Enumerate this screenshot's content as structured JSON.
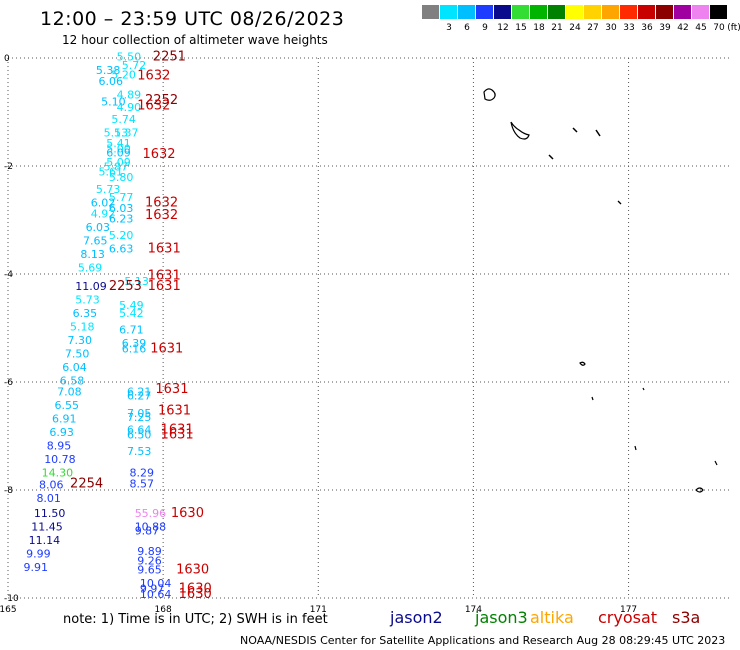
{
  "title": "12:00 – 23:59 UTC 08/26/2023",
  "subtitle": "12 hour collection of altimeter wave heights",
  "legend": {
    "unit": "(ft)",
    "items": [
      {
        "label": "",
        "color": "#808080"
      },
      {
        "label": "3",
        "color": "#00e5ff"
      },
      {
        "label": "6",
        "color": "#00bfff"
      },
      {
        "label": "9",
        "color": "#1e3cff"
      },
      {
        "label": "12",
        "color": "#0a0a8c"
      },
      {
        "label": "15",
        "color": "#33dd33"
      },
      {
        "label": "18",
        "color": "#00b400"
      },
      {
        "label": "21",
        "color": "#008200"
      },
      {
        "label": "24",
        "color": "#ffff00"
      },
      {
        "label": "27",
        "color": "#ffd200"
      },
      {
        "label": "30",
        "color": "#ffa500"
      },
      {
        "label": "33",
        "color": "#ff2a00"
      },
      {
        "label": "36",
        "color": "#c80000"
      },
      {
        "label": "39",
        "color": "#8c0000"
      },
      {
        "label": "42",
        "color": "#a000a0"
      },
      {
        "label": "45",
        "color": "#ee82ee"
      },
      {
        "label": "70",
        "color": "#000000"
      }
    ]
  },
  "note": "note: 1) Time is in UTC; 2) SWH is in feet",
  "satellites": [
    {
      "name": "jason2",
      "color": "#0a0a8c"
    },
    {
      "name": "jason3",
      "color": "#008200"
    },
    {
      "name": "altika",
      "color": "#ffa500"
    },
    {
      "name": "cryosat",
      "color": "#c80000"
    },
    {
      "name": "s3a",
      "color": "#8c0000"
    }
  ],
  "footer": "NOAA/NESDIS Center for Satellite Applications and Research   Aug 28 08:29:45 UTC 2023",
  "chart_data": {
    "type": "scatter",
    "xlim": [
      165,
      179
    ],
    "ylim": [
      -10,
      0
    ],
    "x_ticks": [
      "165",
      "168",
      "171",
      "174",
      "177"
    ],
    "y_ticks": [
      "0",
      "-2",
      "-4",
      "-6",
      "-8",
      "-10"
    ],
    "grid": true,
    "wave_heights": [
      {
        "x": 167.1,
        "y": -0.05,
        "v": "5.50",
        "color": "#00e5ff"
      },
      {
        "x": 167.2,
        "y": -0.2,
        "v": "5.72",
        "color": "#00e5ff"
      },
      {
        "x": 166.7,
        "y": -0.3,
        "v": "5.38",
        "color": "#00bfff"
      },
      {
        "x": 167.0,
        "y": -0.38,
        "v": "5.20",
        "color": "#00e5ff"
      },
      {
        "x": 166.75,
        "y": -0.5,
        "v": "6.06",
        "color": "#00bfff"
      },
      {
        "x": 167.1,
        "y": -0.75,
        "v": "4.89",
        "color": "#00e5ff"
      },
      {
        "x": 166.8,
        "y": -0.88,
        "v": "5.10",
        "color": "#00bfff"
      },
      {
        "x": 167.1,
        "y": -0.98,
        "v": "4.90",
        "color": "#00e5ff"
      },
      {
        "x": 167.0,
        "y": -1.2,
        "v": "5.74",
        "color": "#00e5ff"
      },
      {
        "x": 166.85,
        "y": -1.45,
        "v": "5.13",
        "color": "#00e5ff"
      },
      {
        "x": 167.05,
        "y": -1.45,
        "v": "5.37",
        "color": "#00e5ff"
      },
      {
        "x": 166.9,
        "y": -1.65,
        "v": "5.41",
        "color": "#00e5ff"
      },
      {
        "x": 166.9,
        "y": -1.75,
        "v": "5.00",
        "color": "#00e5ff"
      },
      {
        "x": 166.9,
        "y": -1.82,
        "v": "6.09",
        "color": "#00bfff"
      },
      {
        "x": 166.9,
        "y": -2.0,
        "v": "5.09",
        "color": "#00e5ff"
      },
      {
        "x": 166.85,
        "y": -2.08,
        "v": "5.87",
        "color": "#00e5ff"
      },
      {
        "x": 166.75,
        "y": -2.18,
        "v": "5.61",
        "color": "#00e5ff"
      },
      {
        "x": 166.95,
        "y": -2.28,
        "v": "5.80",
        "color": "#00e5ff"
      },
      {
        "x": 166.7,
        "y": -2.5,
        "v": "5.73",
        "color": "#00e5ff"
      },
      {
        "x": 166.95,
        "y": -2.65,
        "v": "5.77",
        "color": "#00e5ff"
      },
      {
        "x": 166.6,
        "y": -2.75,
        "v": "6.02",
        "color": "#00bfff"
      },
      {
        "x": 166.95,
        "y": -2.85,
        "v": "6.03",
        "color": "#00bfff"
      },
      {
        "x": 166.6,
        "y": -2.95,
        "v": "4.92",
        "color": "#00e5ff"
      },
      {
        "x": 166.95,
        "y": -3.05,
        "v": "6.23",
        "color": "#00bfff"
      },
      {
        "x": 166.5,
        "y": -3.2,
        "v": "6.03",
        "color": "#00bfff"
      },
      {
        "x": 166.95,
        "y": -3.35,
        "v": "5.20",
        "color": "#00e5ff"
      },
      {
        "x": 166.45,
        "y": -3.45,
        "v": "7.65",
        "color": "#00bfff"
      },
      {
        "x": 166.95,
        "y": -3.6,
        "v": "6.63",
        "color": "#00bfff"
      },
      {
        "x": 166.4,
        "y": -3.7,
        "v": "8.13",
        "color": "#00bfff"
      },
      {
        "x": 166.35,
        "y": -3.95,
        "v": "5.69",
        "color": "#00e5ff"
      },
      {
        "x": 167.25,
        "y": -4.2,
        "v": "5.13",
        "color": "#00e5ff"
      },
      {
        "x": 166.3,
        "y": -4.3,
        "v": "11.09",
        "color": "#0a0a8c"
      },
      {
        "x": 166.3,
        "y": -4.55,
        "v": "5.73",
        "color": "#00e5ff"
      },
      {
        "x": 167.15,
        "y": -4.65,
        "v": "5.49",
        "color": "#00e5ff"
      },
      {
        "x": 167.15,
        "y": -4.8,
        "v": "5.42",
        "color": "#00e5ff"
      },
      {
        "x": 166.25,
        "y": -4.8,
        "v": "6.35",
        "color": "#00bfff"
      },
      {
        "x": 166.2,
        "y": -5.05,
        "v": "5.18",
        "color": "#00e5ff"
      },
      {
        "x": 167.15,
        "y": -5.1,
        "v": "6.71",
        "color": "#00bfff"
      },
      {
        "x": 166.15,
        "y": -5.3,
        "v": "7.30",
        "color": "#00bfff"
      },
      {
        "x": 167.2,
        "y": -5.35,
        "v": "6.39",
        "color": "#00bfff"
      },
      {
        "x": 167.2,
        "y": -5.45,
        "v": "6.16",
        "color": "#00bfff"
      },
      {
        "x": 166.1,
        "y": -5.55,
        "v": "7.50",
        "color": "#00bfff"
      },
      {
        "x": 166.05,
        "y": -5.8,
        "v": "6.04",
        "color": "#00bfff"
      },
      {
        "x": 166.0,
        "y": -6.05,
        "v": "6.58",
        "color": "#00bfff"
      },
      {
        "x": 165.95,
        "y": -6.25,
        "v": "7.08",
        "color": "#00bfff"
      },
      {
        "x": 167.3,
        "y": -6.25,
        "v": "6.21",
        "color": "#00bfff"
      },
      {
        "x": 167.3,
        "y": -6.32,
        "v": "6.27",
        "color": "#00bfff"
      },
      {
        "x": 165.9,
        "y": -6.5,
        "v": "6.55",
        "color": "#00bfff"
      },
      {
        "x": 167.3,
        "y": -6.65,
        "v": "7.05",
        "color": "#00bfff"
      },
      {
        "x": 167.3,
        "y": -6.72,
        "v": "7.25",
        "color": "#00bfff"
      },
      {
        "x": 165.85,
        "y": -6.75,
        "v": "6.91",
        "color": "#00bfff"
      },
      {
        "x": 167.3,
        "y": -6.95,
        "v": "6.64",
        "color": "#00bfff"
      },
      {
        "x": 165.8,
        "y": -7.0,
        "v": "6.93",
        "color": "#00bfff"
      },
      {
        "x": 167.3,
        "y": -7.05,
        "v": "6.50",
        "color": "#00bfff"
      },
      {
        "x": 165.75,
        "y": -7.25,
        "v": "8.95",
        "color": "#1e3cff"
      },
      {
        "x": 167.3,
        "y": -7.35,
        "v": "7.53",
        "color": "#00bfff"
      },
      {
        "x": 165.7,
        "y": -7.5,
        "v": "10.78",
        "color": "#1e3cff"
      },
      {
        "x": 165.65,
        "y": -7.75,
        "v": "14.30",
        "color": "#33dd33"
      },
      {
        "x": 167.35,
        "y": -7.75,
        "v": "8.29",
        "color": "#1e3cff"
      },
      {
        "x": 165.6,
        "y": -7.97,
        "v": "8.06",
        "color": "#1e3cff"
      },
      {
        "x": 167.35,
        "y": -7.95,
        "v": "8.57",
        "color": "#1e3cff"
      },
      {
        "x": 165.55,
        "y": -8.22,
        "v": "8.01",
        "color": "#1e3cff"
      },
      {
        "x": 167.45,
        "y": -8.5,
        "v": "55.96",
        "color": "#ee82ee"
      },
      {
        "x": 165.5,
        "y": -8.5,
        "v": "11.50",
        "color": "#0a0a8c"
      },
      {
        "x": 165.45,
        "y": -8.75,
        "v": "11.45",
        "color": "#0a0a8c"
      },
      {
        "x": 167.45,
        "y": -8.75,
        "v": "10.88",
        "color": "#1e3cff"
      },
      {
        "x": 167.45,
        "y": -8.82,
        "v": "9.87",
        "color": "#1e3cff"
      },
      {
        "x": 165.4,
        "y": -9.0,
        "v": "11.14",
        "color": "#0a0a8c"
      },
      {
        "x": 165.35,
        "y": -9.25,
        "v": "9.99",
        "color": "#1e3cff"
      },
      {
        "x": 167.5,
        "y": -9.2,
        "v": "9.89",
        "color": "#1e3cff"
      },
      {
        "x": 167.5,
        "y": -9.38,
        "v": "9.26",
        "color": "#1e3cff"
      },
      {
        "x": 165.3,
        "y": -9.5,
        "v": "9.91",
        "color": "#1e3cff"
      },
      {
        "x": 167.5,
        "y": -9.55,
        "v": "9.65",
        "color": "#1e3cff"
      },
      {
        "x": 167.55,
        "y": -9.8,
        "v": "10.04",
        "color": "#1e3cff"
      },
      {
        "x": 167.55,
        "y": -9.9,
        "v": "9.97",
        "color": "#1e3cff"
      },
      {
        "x": 167.55,
        "y": -10.0,
        "v": "10.64",
        "color": "#1e3cff"
      }
    ],
    "time_labels": [
      {
        "x": 167.8,
        "y": -0.05,
        "v": "2251",
        "color": "#8c0000"
      },
      {
        "x": 167.5,
        "y": -0.4,
        "v": "1632",
        "color": "#c80000"
      },
      {
        "x": 167.65,
        "y": -0.85,
        "v": "2252",
        "color": "#8c0000"
      },
      {
        "x": 167.5,
        "y": -0.95,
        "v": "1632",
        "color": "#c80000"
      },
      {
        "x": 167.6,
        "y": -1.85,
        "v": "1632",
        "color": "#c80000"
      },
      {
        "x": 167.65,
        "y": -2.75,
        "v": "1632",
        "color": "#c80000"
      },
      {
        "x": 167.65,
        "y": -2.98,
        "v": "1632",
        "color": "#c80000"
      },
      {
        "x": 167.7,
        "y": -3.6,
        "v": "1631",
        "color": "#c80000"
      },
      {
        "x": 167.7,
        "y": -4.1,
        "v": "1631",
        "color": "#c80000"
      },
      {
        "x": 166.95,
        "y": -4.3,
        "v": "2253",
        "color": "#8c0000"
      },
      {
        "x": 167.7,
        "y": -4.3,
        "v": "1631",
        "color": "#c80000"
      },
      {
        "x": 167.75,
        "y": -5.45,
        "v": "1631",
        "color": "#c80000"
      },
      {
        "x": 167.85,
        "y": -6.2,
        "v": "1631",
        "color": "#c80000"
      },
      {
        "x": 167.9,
        "y": -6.6,
        "v": "1631",
        "color": "#c80000"
      },
      {
        "x": 167.95,
        "y": -6.95,
        "v": "1631",
        "color": "#c80000"
      },
      {
        "x": 167.95,
        "y": -7.05,
        "v": "1631",
        "color": "#c80000"
      },
      {
        "x": 166.2,
        "y": -7.95,
        "v": "2254",
        "color": "#8c0000"
      },
      {
        "x": 168.15,
        "y": -8.5,
        "v": "1630",
        "color": "#c80000"
      },
      {
        "x": 168.25,
        "y": -9.55,
        "v": "1630",
        "color": "#c80000"
      },
      {
        "x": 168.3,
        "y": -9.9,
        "v": "1630",
        "color": "#c80000"
      },
      {
        "x": 168.3,
        "y": -10.0,
        "v": "1630",
        "color": "#c80000"
      }
    ]
  }
}
